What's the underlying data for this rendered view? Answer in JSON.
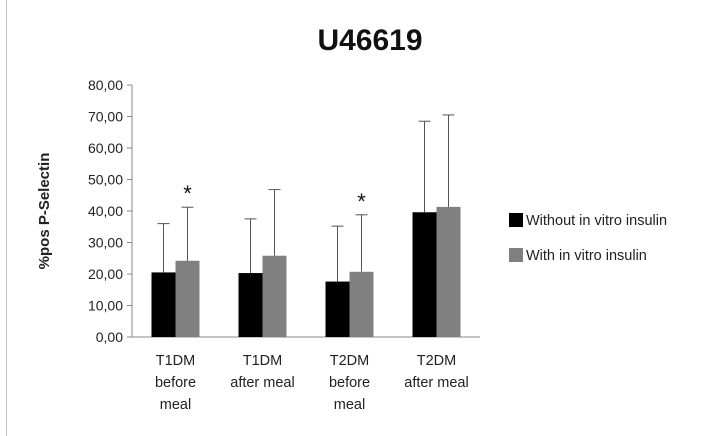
{
  "chart_data": {
    "type": "bar",
    "title": "U46619",
    "ylabel": "%pos P-Selectin",
    "xlabel": "",
    "ylim": [
      0,
      80
    ],
    "y_ticks": [
      "0,00",
      "10,00",
      "20,00",
      "30,00",
      "40,00",
      "50,00",
      "60,00",
      "70,00",
      "80,00"
    ],
    "categories": [
      [
        "T1DM",
        "before",
        "meal"
      ],
      [
        "T1DM",
        "after meal"
      ],
      [
        "T2DM",
        "before",
        "meal"
      ],
      [
        "T2DM",
        "after meal"
      ]
    ],
    "series": [
      {
        "name": "Without in vitro insulin",
        "color": "#000000",
        "values": [
          20.5,
          20.3,
          17.6,
          39.6
        ],
        "error_upper": [
          36.0,
          37.5,
          35.2,
          68.5
        ]
      },
      {
        "name": "With in vitro insulin",
        "color": "#808080",
        "values": [
          24.2,
          25.8,
          20.7,
          41.3
        ],
        "error_upper": [
          41.2,
          46.8,
          38.8,
          70.5
        ]
      }
    ],
    "annotations": [
      {
        "text": "*",
        "category_index": 0
      },
      {
        "text": "*",
        "category_index": 2
      }
    ],
    "legend_position": "right",
    "grid": false
  }
}
